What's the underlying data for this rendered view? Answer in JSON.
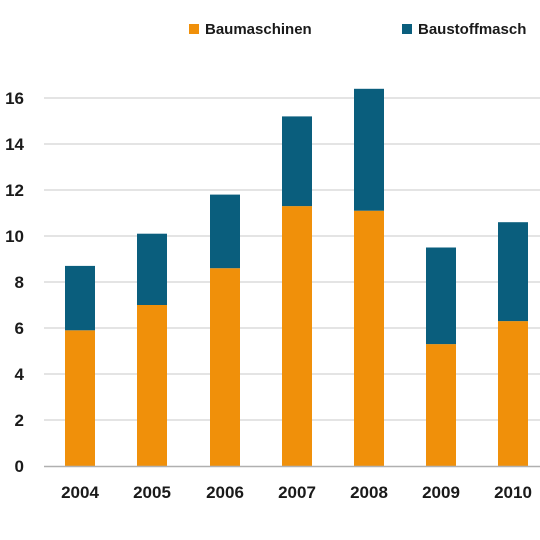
{
  "chart_data": {
    "type": "bar",
    "stacked": true,
    "categories": [
      "2004",
      "2005",
      "2006",
      "2007",
      "2008",
      "2009",
      "2010"
    ],
    "series": [
      {
        "name": "Baumaschinen",
        "color": "#F0900A",
        "values": [
          5.9,
          7.0,
          8.6,
          11.3,
          11.1,
          5.3,
          6.3
        ]
      },
      {
        "name": "Baustoffmasch",
        "color": "#0A5E7D",
        "values": [
          2.8,
          3.1,
          3.2,
          3.9,
          5.3,
          4.2,
          4.3
        ]
      }
    ],
    "ylim": [
      0,
      16
    ],
    "yticks": [
      0,
      2,
      4,
      6,
      8,
      10,
      12,
      14,
      16
    ],
    "grid": true,
    "legend": "top"
  }
}
